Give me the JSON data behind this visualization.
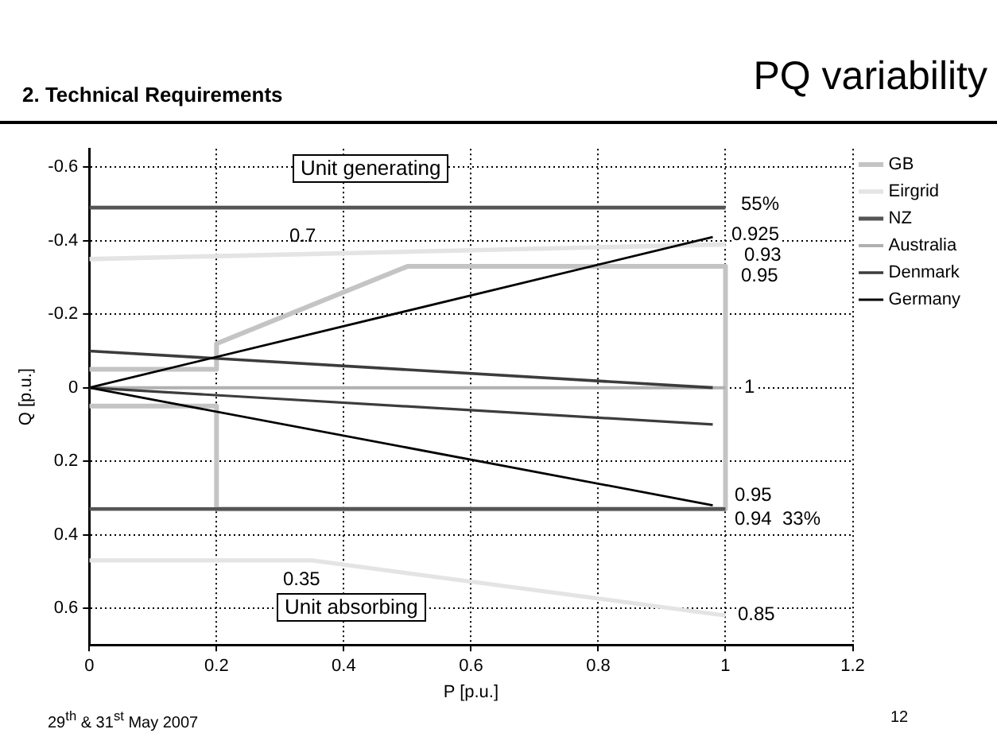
{
  "chart_data": {
    "type": "line",
    "title": "PQ variability",
    "subtitle": "2. Technical Requirements",
    "xlabel": "P [p.u.]",
    "ylabel": "Q [p.u.]",
    "xlim": [
      0,
      1.2
    ],
    "xticks": [
      0,
      0.2,
      0.4,
      0.6,
      0.8,
      1,
      1.2
    ],
    "ylim": [
      0.7,
      -0.65
    ],
    "yticks": [
      -0.6,
      -0.4,
      -0.2,
      0,
      0.2,
      0.4,
      0.6
    ],
    "grid": true,
    "legend": "right",
    "marker": "none",
    "line_style": "solid",
    "series": [
      {
        "name": "GB",
        "color": "#c4c4c4",
        "x": [
          0,
          0.2,
          0.2,
          0.5,
          1,
          1,
          0.2,
          0.2,
          0
        ],
        "values": [
          -0.05,
          -0.05,
          -0.12,
          -0.33,
          -0.33,
          0.33,
          0.33,
          0.05,
          0.05
        ]
      },
      {
        "name": "Eirgrid",
        "color": "#e4e4e4",
        "x": [
          0,
          1
        ],
        "values": [
          -0.35,
          -0.39
        ]
      },
      {
        "color": "#e4e4e4",
        "x": [
          0,
          0.35,
          1
        ],
        "values": [
          0.47,
          0.47,
          0.62
        ]
      },
      {
        "name": "NZ",
        "color": "#555555",
        "x": [
          0,
          1
        ],
        "values": [
          -0.49,
          -0.49
        ]
      },
      {
        "color": "#555555",
        "x": [
          0,
          1
        ],
        "values": [
          0.33,
          0.33
        ]
      },
      {
        "name": "Australia",
        "color": "#b0b0b0",
        "x": [
          0,
          1
        ],
        "values": [
          0,
          0
        ]
      },
      {
        "name": "Denmark",
        "color": "#3c3c3c",
        "x": [
          0,
          0.98
        ],
        "values": [
          -0.1,
          0
        ]
      },
      {
        "color": "#3c3c3c",
        "x": [
          0,
          0.98
        ],
        "values": [
          0,
          0.1
        ]
      },
      {
        "name": "Germany",
        "color": "#000000",
        "x": [
          0.98,
          0,
          0.98
        ],
        "values": [
          -0.41,
          0,
          0.32
        ]
      }
    ],
    "annotations": [
      "Unit generating",
      "Unit absorbing",
      "0.7",
      "0.35",
      "55%",
      "0.925",
      "0.93",
      "0.95",
      "1",
      "0.95",
      "0.94",
      "33%",
      "0.85",
      "29$^{th}$ & 31$^{st}$ May 2007",
      "12"
    ]
  }
}
